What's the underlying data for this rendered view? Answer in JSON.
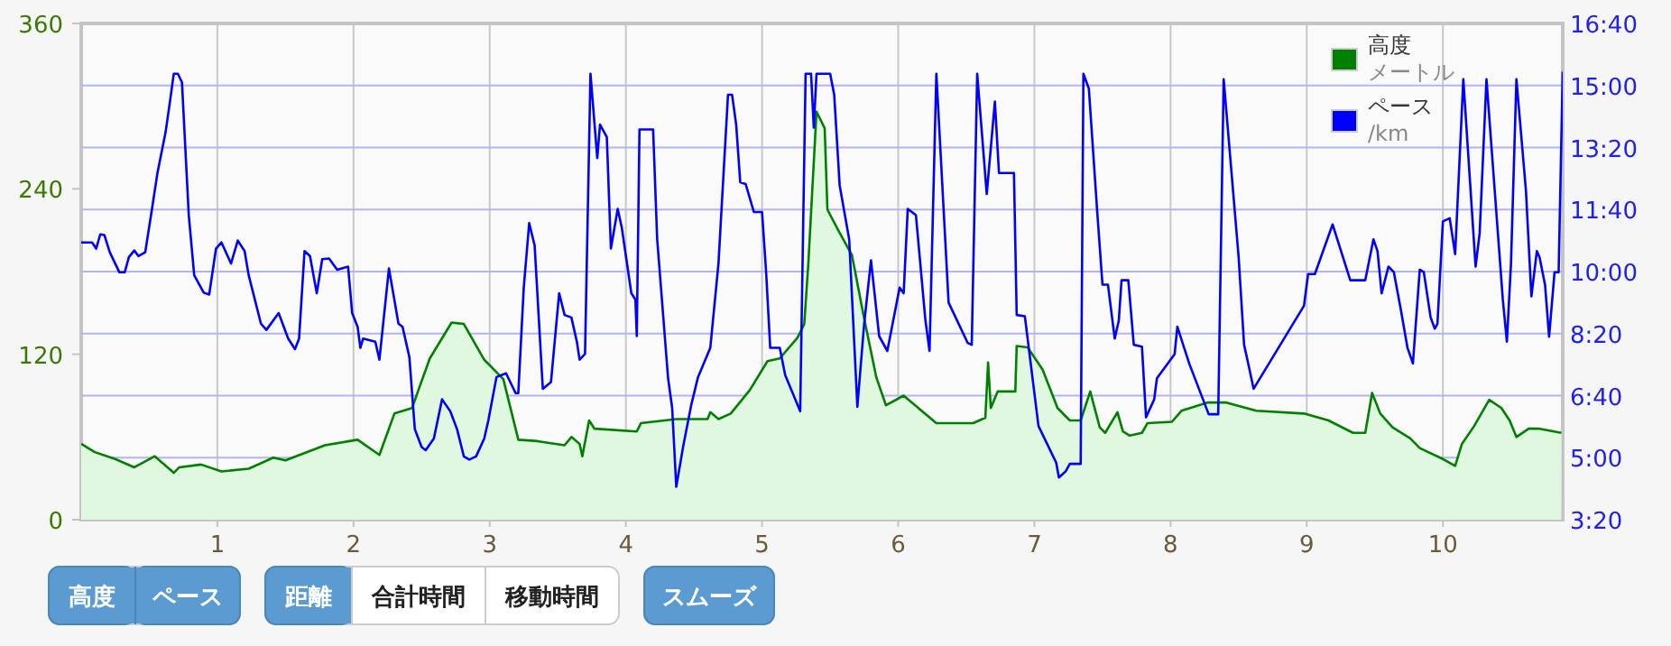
{
  "chart_data": {
    "type": "area",
    "xlim": [
      0,
      10.88
    ],
    "xticks": [
      1,
      2,
      3,
      4,
      5,
      6,
      7,
      8,
      9,
      10
    ],
    "ylim": [
      0,
      360
    ],
    "yticks": [
      0,
      120,
      240,
      360
    ],
    "y2lim": [
      200,
      1000
    ],
    "y2ticks": [
      {
        "value": 200,
        "label": "3:20"
      },
      {
        "value": 300,
        "label": "5:00"
      },
      {
        "value": 400,
        "label": "6:40"
      },
      {
        "value": 500,
        "label": "8:20"
      },
      {
        "value": 600,
        "label": "10:00"
      },
      {
        "value": 700,
        "label": "11:40"
      },
      {
        "value": 800,
        "label": "13:20"
      },
      {
        "value": 900,
        "label": "15:00"
      },
      {
        "value": 1000,
        "label": "16:40"
      }
    ],
    "grid": true,
    "legend": "top right",
    "annotations": [
      "高度",
      "ペース",
      "距離",
      "合計時間",
      "移動時間",
      "スムーズ",
      "メートル",
      "/km"
    ],
    "series": [
      {
        "name": "高度",
        "color": "#008000",
        "x": [
          0,
          0.1,
          0.25,
          0.39,
          0.54,
          0.68,
          0.72,
          0.88,
          1.03,
          1.23,
          1.41,
          1.5,
          1.79,
          2.03,
          2.19,
          2.3,
          2.43,
          2.48,
          2.56,
          2.72,
          2.81,
          2.96,
          3.1,
          3.21,
          3.35,
          3.55,
          3.6,
          3.66,
          3.68,
          3.73,
          3.77,
          4.08,
          4.11,
          4.37,
          4.6,
          4.62,
          4.68,
          4.77,
          4.91,
          5.04,
          5.13,
          5.26,
          5.31,
          5.34,
          5.4,
          5.46,
          5.48,
          5.57,
          5.66,
          5.75,
          5.84,
          5.91,
          6.04,
          6.28,
          6.55,
          6.64,
          6.66,
          6.68,
          6.73,
          6.86,
          6.87,
          6.95,
          7.06,
          7.17,
          7.26,
          7.34,
          7.41,
          7.48,
          7.52,
          7.61,
          7.65,
          7.7,
          7.79,
          7.83,
          8.01,
          8.08,
          8.27,
          8.41,
          8.63,
          8.98,
          9.16,
          9.34,
          9.43,
          9.48,
          9.54,
          9.63,
          9.76,
          9.83,
          10.0,
          10.09,
          10.14,
          10.23,
          10.34,
          10.43,
          10.49,
          10.54,
          10.63,
          10.71,
          10.87
        ],
        "values": [
          55,
          49,
          44,
          38,
          46,
          34,
          38,
          40,
          35,
          37,
          45,
          43,
          54,
          58,
          47,
          77,
          81,
          95,
          117,
          143,
          142,
          116,
          102,
          58,
          57,
          54,
          60,
          55,
          46,
          72,
          66,
          64,
          70,
          73,
          73,
          78,
          73,
          77,
          94,
          115,
          117,
          132,
          142,
          186,
          296,
          284,
          225,
          208,
          192,
          146,
          103,
          83,
          90,
          70,
          70,
          74,
          114,
          81,
          93,
          93,
          126,
          125,
          109,
          81,
          72,
          72,
          93,
          67,
          63,
          78,
          64,
          61,
          63,
          70,
          71,
          79,
          85,
          85,
          79,
          77,
          72,
          63,
          63,
          92,
          77,
          67,
          59,
          52,
          44,
          39,
          55,
          68,
          87,
          81,
          72,
          60,
          66,
          66,
          63
        ]
      },
      {
        "name": "ペース",
        "type": "line",
        "axis": "y2",
        "color": "#0000ff",
        "x": [
          0,
          0.08,
          0.11,
          0.14,
          0.17,
          0.21,
          0.28,
          0.32,
          0.35,
          0.39,
          0.42,
          0.47,
          0.52,
          0.56,
          0.62,
          0.65,
          0.68,
          0.71,
          0.74,
          0.79,
          0.83,
          0.9,
          0.94,
          0.99,
          1.03,
          1.1,
          1.15,
          1.2,
          1.23,
          1.32,
          1.36,
          1.45,
          1.52,
          1.57,
          1.6,
          1.64,
          1.68,
          1.73,
          1.77,
          1.82,
          1.88,
          1.96,
          1.99,
          2.03,
          2.05,
          2.07,
          2.16,
          2.19,
          2.26,
          2.33,
          2.36,
          2.41,
          2.45,
          2.5,
          2.53,
          2.59,
          2.65,
          2.71,
          2.76,
          2.81,
          2.85,
          2.9,
          2.96,
          2.99,
          3.05,
          3.12,
          3.19,
          3.21,
          3.25,
          3.29,
          3.33,
          3.39,
          3.45,
          3.51,
          3.55,
          3.6,
          3.64,
          3.66,
          3.7,
          3.74,
          3.79,
          3.81,
          3.86,
          3.89,
          3.94,
          3.97,
          4.04,
          4.07,
          4.08,
          4.1,
          4.2,
          4.23,
          4.31,
          4.34,
          4.37,
          4.42,
          4.48,
          4.53,
          4.62,
          4.68,
          4.75,
          4.78,
          4.81,
          4.84,
          4.88,
          4.94,
          5.0,
          5.03,
          5.06,
          5.13,
          5.17,
          5.28,
          5.32,
          5.36,
          5.38,
          5.4,
          5.5,
          5.53,
          5.57,
          5.64,
          5.7,
          5.75,
          5.8,
          5.86,
          5.92,
          6.01,
          6.04,
          6.07,
          6.13,
          6.2,
          6.23,
          6.28,
          6.37,
          6.51,
          6.54,
          6.58,
          6.65,
          6.71,
          6.74,
          6.85,
          6.87,
          6.93,
          7.03,
          7.16,
          7.18,
          7.23,
          7.26,
          7.34,
          7.36,
          7.4,
          7.46,
          7.5,
          7.54,
          7.59,
          7.62,
          7.64,
          7.69,
          7.73,
          7.79,
          7.82,
          7.88,
          7.9,
          8.03,
          8.05,
          8.1,
          8.14,
          8.28,
          8.35,
          8.39,
          8.5,
          8.54,
          8.57,
          8.61,
          8.98,
          9.01,
          9.06,
          9.19,
          9.32,
          9.43,
          9.49,
          9.52,
          9.55,
          9.6,
          9.64,
          9.69,
          9.74,
          9.78,
          9.83,
          9.86,
          9.91,
          9.94,
          9.96,
          10.0,
          10.05,
          10.09,
          10.15,
          10.24,
          10.27,
          10.32,
          10.44,
          10.47,
          10.5,
          10.54,
          10.61,
          10.65,
          10.69,
          10.71,
          10.75,
          10.78,
          10.82,
          10.85,
          10.88
        ],
        "values": [
          647,
          647,
          637,
          660,
          659,
          631,
          599,
          599,
          623,
          634,
          625,
          631,
          701,
          759,
          825,
          871,
          919,
          919,
          905,
          691,
          594,
          566,
          563,
          637,
          647,
          613,
          650,
          633,
          594,
          516,
          506,
          533,
          492,
          475,
          492,
          633,
          625,
          565,
          620,
          621,
          603,
          608,
          533,
          511,
          477,
          492,
          487,
          458,
          605,
          516,
          511,
          462,
          346,
          317,
          312,
          331,
          394,
          375,
          346,
          302,
          297,
          302,
          331,
          360,
          430,
          436,
          404,
          404,
          574,
          678,
          642,
          411,
          422,
          565,
          530,
          526,
          487,
          458,
          467,
          919,
          783,
          837,
          817,
          637,
          701,
          671,
          565,
          555,
          496,
          829,
          829,
          652,
          428,
          380,
          253,
          317,
          385,
          430,
          477,
          613,
          885,
          885,
          837,
          744,
          741,
          696,
          696,
          599,
          477,
          477,
          433,
          375,
          919,
          919,
          832,
          919,
          919,
          885,
          739,
          652,
          382,
          516,
          618,
          496,
          472,
          574,
          565,
          701,
          691,
          521,
          472,
          919,
          550,
          485,
          482,
          919,
          725,
          874,
          759,
          759,
          530,
          528,
          351,
          292,
          268,
          278,
          290,
          290,
          919,
          895,
          701,
          579,
          579,
          492,
          521,
          586,
          586,
          482,
          479,
          365,
          394,
          428,
          467,
          511,
          477,
          450,
          370,
          370,
          910,
          623,
          482,
          452,
          411,
          545,
          596,
          596,
          676,
          586,
          586,
          652,
          633,
          565,
          608,
          599,
          540,
          477,
          452,
          603,
          599,
          526,
          508,
          516,
          681,
          686,
          628,
          910,
          608,
          662,
          910,
          555,
          487,
          613,
          910,
          730,
          560,
          633,
          623,
          579,
          495,
          599,
          599,
          922
        ]
      }
    ]
  }
}
